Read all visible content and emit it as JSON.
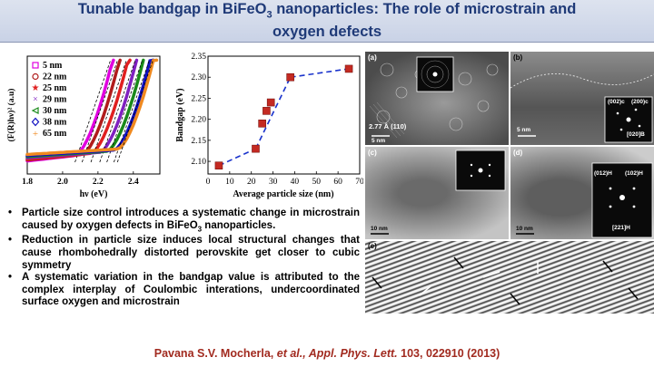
{
  "title": {
    "line1_pre": "Tunable bandgap in BiFeO",
    "line1_sub": "3",
    "line1_post": " nanoparticles: The role of microstrain and",
    "line2": "oxygen defects"
  },
  "charts": {
    "absorption": {
      "type": "line",
      "ylabel": "(F(R)hν)² (a.u)",
      "xlabel": "hν (eV)",
      "xlim": [
        1.8,
        2.55
      ],
      "xticks": [
        "1.8",
        "2.0",
        "2.2",
        "2.4"
      ],
      "legend_placement": "top-left",
      "series": [
        {
          "name": "5 nm",
          "color": "#e000e0",
          "marker": "square",
          "onset": 2.07
        },
        {
          "name": "22 nm",
          "color": "#b01c1c",
          "marker": "circle",
          "onset": 2.11
        },
        {
          "name": "25 nm",
          "color": "#e02020",
          "marker": "star",
          "onset": 2.16
        },
        {
          "name": "29 nm",
          "color": "#8020c0",
          "marker": "x",
          "onset": 2.21
        },
        {
          "name": "30 nm",
          "color": "#1a8a1a",
          "marker": "triangle",
          "onset": 2.25
        },
        {
          "name": "38 nm",
          "color": "#1010c0",
          "marker": "diamond",
          "onset": 2.29
        },
        {
          "name": "65 nm",
          "color": "#f08a20",
          "marker": "plus",
          "onset": 2.31
        }
      ]
    },
    "bandgap": {
      "type": "scatter",
      "xlabel": "Average particle size (nm)",
      "ylabel": "Bandgap (eV)",
      "xlim": [
        0,
        70
      ],
      "ylim": [
        2.07,
        2.35
      ],
      "xticks": [
        "0",
        "10",
        "20",
        "30",
        "40",
        "50",
        "60",
        "70"
      ],
      "yticks": [
        "2.10",
        "2.15",
        "2.20",
        "2.25",
        "2.30",
        "2.35"
      ],
      "x": [
        5,
        22,
        25,
        27,
        29,
        38,
        65
      ],
      "y": [
        2.09,
        2.13,
        2.19,
        2.22,
        2.24,
        2.3,
        2.32
      ],
      "trend_lines": [
        {
          "x": [
            5,
            22
          ],
          "y": [
            2.09,
            2.13
          ]
        },
        {
          "x": [
            22,
            38
          ],
          "y": [
            2.13,
            2.3
          ]
        },
        {
          "x": [
            38,
            65
          ],
          "y": [
            2.3,
            2.32
          ]
        }
      ],
      "marker_color": "#c42a22",
      "line_color": "#1a33cc"
    }
  },
  "tem_panels": {
    "a": {
      "label": "(a)",
      "lattice": "2.77 Å (110)",
      "scale": "5 nm"
    },
    "b": {
      "label": "(b)",
      "scale": "5 nm",
      "inset": [
        "(002)c",
        "(200)c",
        "[020]B",
        "[020]B"
      ]
    },
    "c": {
      "label": "(c)",
      "scale": "10 nm"
    },
    "d": {
      "label": "(d)",
      "scale": "10 nm",
      "inset": [
        "(012)H",
        "(102)H",
        "[221]H"
      ]
    },
    "e": {
      "label": "(e)"
    }
  },
  "bullets": [
    {
      "pre": "Particle size control introduces a systematic change in microstrain caused by oxygen defects in BiFeO",
      "sub": "3",
      "post": " nanoparticles."
    },
    {
      "pre": "Reduction in particle size induces local structural changes that cause rhombohedrally distorted perovskite get closer to cubic symmetry",
      "sub": "",
      "post": ""
    },
    {
      "pre": "A systematic variation in the bandgap value is attributed to the complex interplay of Coulombic interations, undercoordinated surface oxygen and microstrain",
      "sub": "",
      "post": ""
    }
  ],
  "citation": {
    "authors": "Pavana S.V. Mocherla, ",
    "etal": "et al., Appl. Phys. Lett.",
    "ref": " 103, 022910 (2013)"
  },
  "bullet_symbol": "•"
}
